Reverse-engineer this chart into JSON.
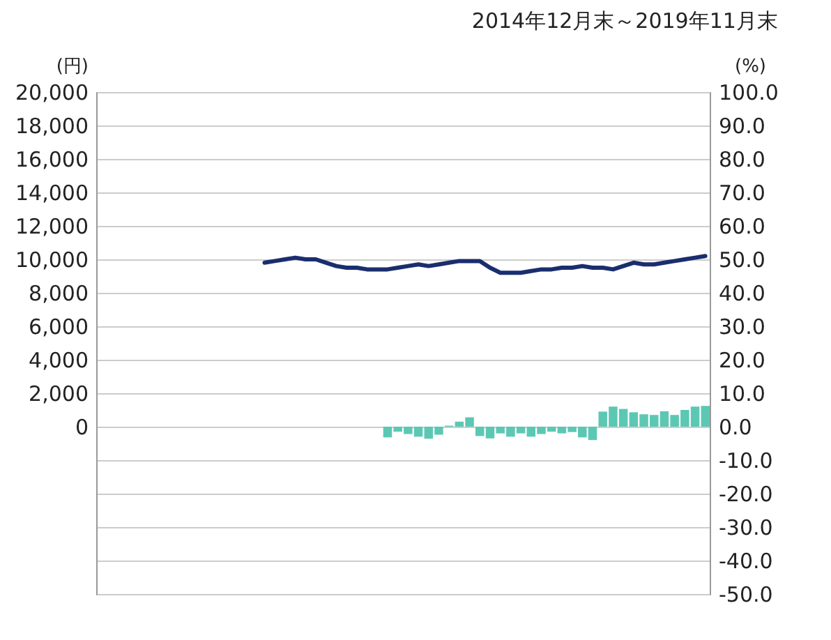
{
  "chart_data": {
    "type": "line",
    "title": "2014年12月末～2019年11月末",
    "ylabel": "(円)",
    "y2label": "(%)",
    "categories": [
      null,
      null,
      null,
      null,
      null,
      null,
      null,
      null,
      null,
      null,
      null,
      null,
      null,
      null,
      null,
      null,
      null,
      null,
      null,
      null,
      null,
      null,
      null,
      null,
      null,
      null,
      null,
      null,
      null,
      null,
      null,
      null,
      null,
      null,
      null,
      null,
      null,
      null,
      null,
      null,
      null,
      null,
      null,
      null,
      null,
      null,
      null,
      null,
      null,
      null,
      null,
      null,
      null,
      null,
      null,
      null,
      null,
      null,
      null,
      null
    ],
    "series": [
      {
        "color": "#1a2e6e",
        "values": [
          null,
          null,
          null,
          null,
          null,
          null,
          null,
          null,
          null,
          null,
          null,
          null,
          null,
          null,
          null,
          null,
          9800,
          9900,
          10000,
          10100,
          10000,
          10000,
          9800,
          9600,
          9500,
          9500,
          9400,
          9400,
          9400,
          9500,
          9600,
          9700,
          9600,
          9700,
          9800,
          9900,
          9900,
          9900,
          9500,
          9200,
          9200,
          9200,
          9300,
          9400,
          9400,
          9500,
          9500,
          9600,
          9500,
          9500,
          9400,
          9600,
          9800,
          9700,
          9700,
          9800,
          9900,
          10000,
          10100,
          10200
        ]
      },
      {
        "type": "bar",
        "axis": "y2",
        "color": "#5cc8b4",
        "values": [
          null,
          null,
          null,
          null,
          null,
          null,
          null,
          null,
          null,
          null,
          null,
          null,
          null,
          null,
          null,
          null,
          null,
          null,
          null,
          null,
          null,
          null,
          null,
          null,
          null,
          null,
          null,
          null,
          -3.2,
          -1.5,
          -2.2,
          -3.0,
          -3.6,
          -2.4,
          0.3,
          1.5,
          2.8,
          -2.8,
          -3.5,
          -2.0,
          -3.0,
          -2.0,
          -3.0,
          -2.2,
          -1.5,
          -2.0,
          -1.6,
          -3.2,
          -4.0,
          4.5,
          6.0,
          5.3,
          4.3,
          3.7,
          3.5,
          4.6,
          3.5,
          5.0,
          6.0,
          6.2
        ]
      }
    ],
    "ylim": [
      -10000,
      20000
    ],
    "yticks": [
      0,
      {
        "value": 2000,
        "label": "2,000"
      },
      {
        "value": 4000,
        "label": "4,000"
      },
      {
        "value": 6000,
        "label": "6,000"
      },
      {
        "value": 8000,
        "label": "8,000"
      },
      {
        "value": 10000,
        "label": "10,000"
      },
      {
        "value": 12000,
        "label": "12,000"
      },
      {
        "value": 14000,
        "label": "14,000"
      },
      {
        "value": 16000,
        "label": "16,000"
      },
      {
        "value": 18000,
        "label": "18,000"
      },
      {
        "value": 20000,
        "label": "20,000"
      }
    ],
    "y2lim": [
      -50,
      100
    ],
    "y2ticks": [
      {
        "value": -50,
        "label": "-50.0"
      },
      {
        "value": -40,
        "label": "-40.0"
      },
      {
        "value": -30,
        "label": "-30.0"
      },
      {
        "value": -20,
        "label": "-20.0"
      },
      {
        "value": -10,
        "label": "-10.0"
      },
      {
        "value": 0,
        "label": "0.0"
      },
      {
        "value": 10,
        "label": "10.0"
      },
      {
        "value": 20,
        "label": "20.0"
      },
      {
        "value": 30,
        "label": "30.0"
      },
      {
        "value": 40,
        "label": "40.0"
      },
      {
        "value": 50,
        "label": "50.0"
      },
      {
        "value": 60,
        "label": "60.0"
      },
      {
        "value": 70,
        "label": "70.0"
      },
      {
        "value": 80,
        "label": "80.0"
      },
      {
        "value": 90,
        "label": "90.0"
      },
      {
        "value": 100,
        "label": "100.0"
      }
    ],
    "grid": "y2"
  }
}
